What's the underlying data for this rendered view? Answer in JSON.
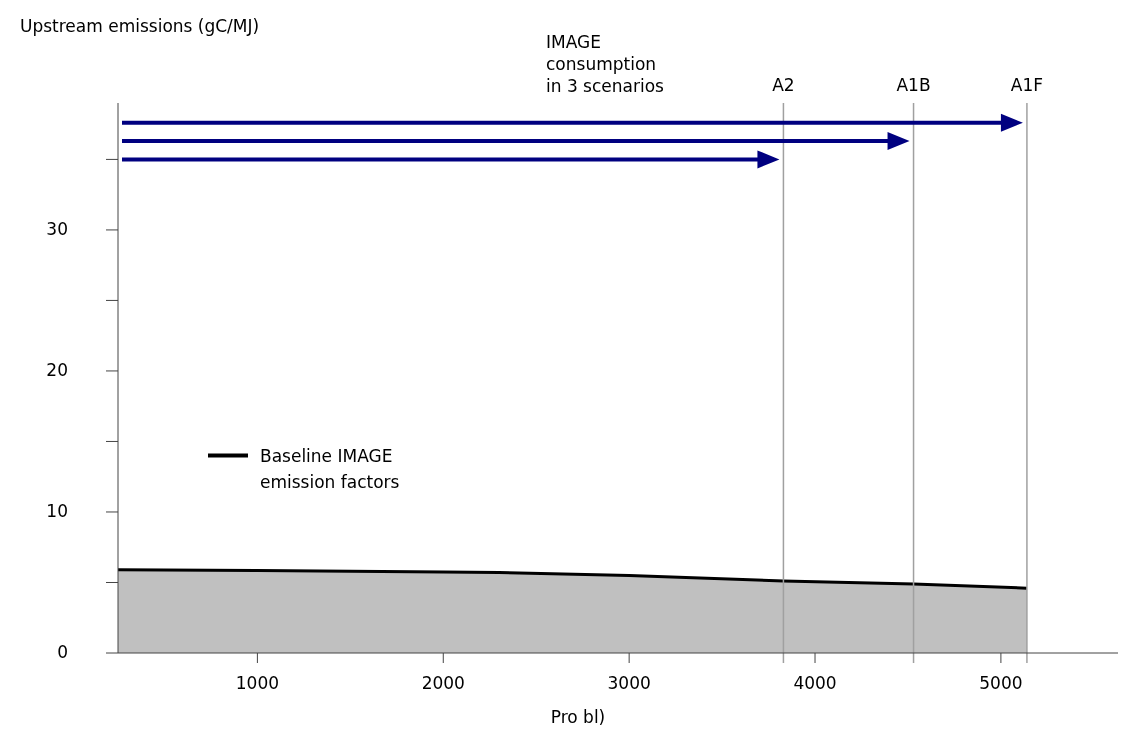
{
  "chart_data": {
    "type": "area",
    "ylabel": "Upstream emissions (gC/MJ)",
    "xlabel": "Pro bl)",
    "x": [
      250,
      1000,
      2000,
      2300,
      3000,
      3830,
      4530,
      5140
    ],
    "series": [
      {
        "name": "Baseline IMAGE emission factors",
        "color": "#000000",
        "values": [
          5.9,
          5.85,
          5.75,
          5.7,
          5.5,
          5.1,
          4.9,
          4.6
        ]
      }
    ],
    "xlim": [
      250,
      5630
    ],
    "ylim": [
      0,
      39
    ],
    "xticks": [
      1000,
      2000,
      3000,
      4000,
      5000
    ],
    "yticks": [
      0,
      10,
      20,
      30,
      {
        "value": 5,
        "label": null
      },
      {
        "value": 15,
        "label": null
      },
      {
        "value": 25,
        "label": null
      },
      {
        "value": 35,
        "label": null
      }
    ],
    "ref_lines": [
      {
        "axis": "x",
        "value": 3830,
        "label": "A2",
        "color": "#a0a0a0"
      },
      {
        "axis": "x",
        "value": 4530,
        "label": "A1B",
        "color": "#a0a0a0"
      },
      {
        "axis": "x",
        "value": 5140,
        "label": "A1F",
        "color": "#a0a0a0"
      }
    ],
    "annotations": [
      "IMAGE consumption in 3 scenarios"
    ],
    "legend": "left",
    "grid": false
  }
}
